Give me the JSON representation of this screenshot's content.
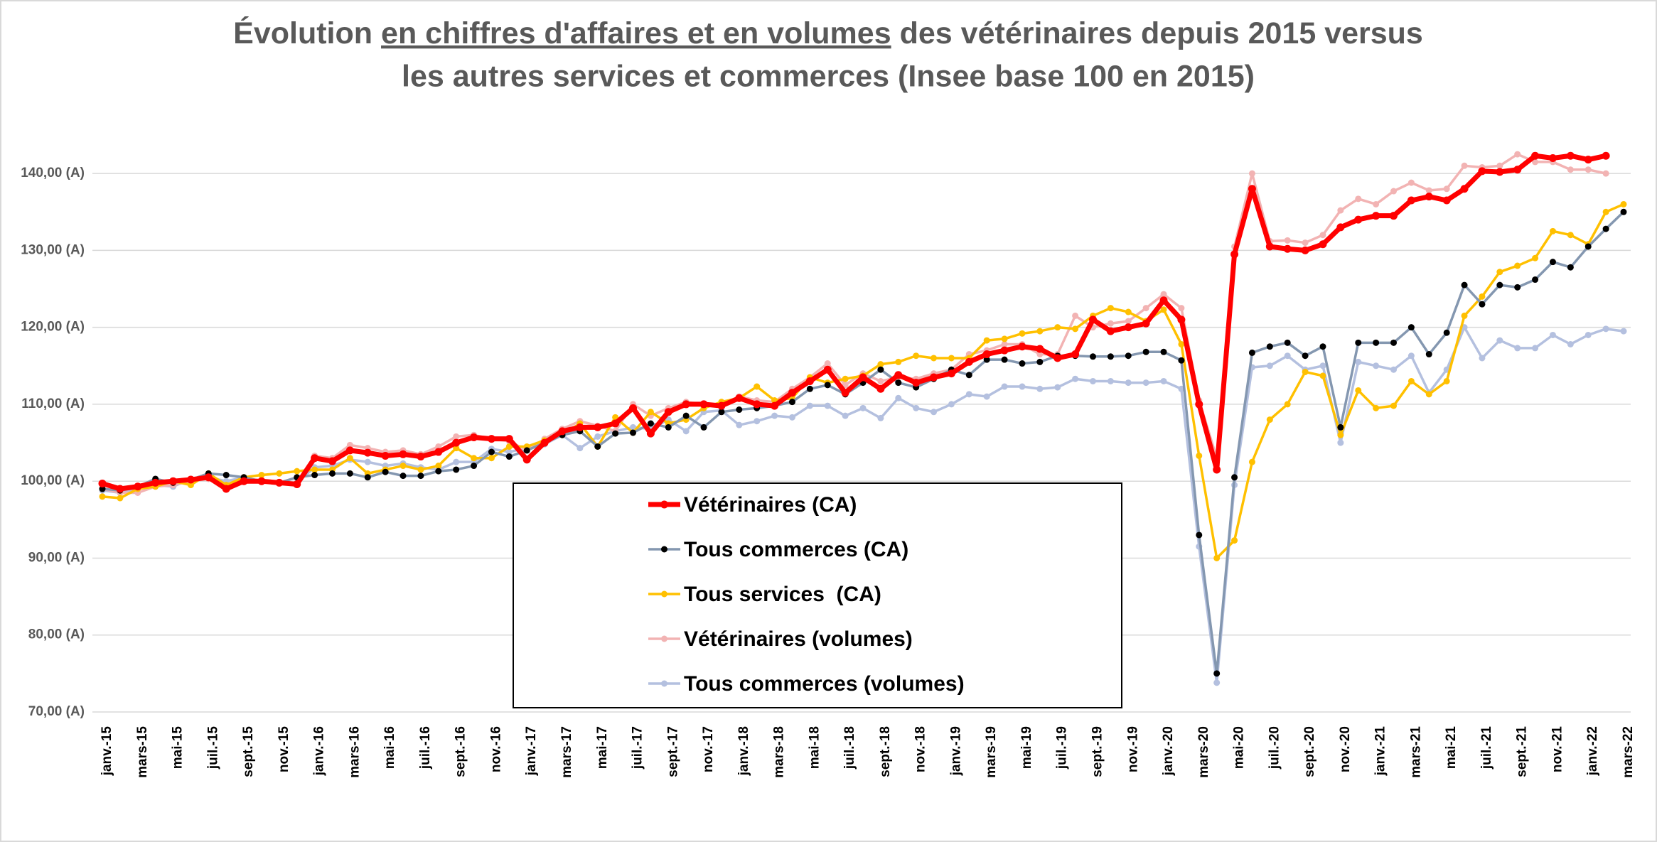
{
  "chart_data": {
    "type": "line",
    "title": [
      "Évolution",
      "en chiffres d'affaires et en volumes",
      "des vétérinaires depuis 2015 versus"
    ],
    "title_line2": "les autres services et commerces (Insee base 100 en 2015)",
    "categories": [
      "janv.-15",
      null,
      "mars-15",
      null,
      "mai-15",
      null,
      "juil.-15",
      null,
      "sept.-15",
      null,
      "nov.-15",
      null,
      "janv.-16",
      null,
      "mars-16",
      null,
      "mai-16",
      null,
      "juil.-16",
      null,
      "sept.-16",
      null,
      "nov.-16",
      null,
      "janv.-17",
      null,
      "mars-17",
      null,
      "mai-17",
      null,
      "juil.-17",
      null,
      "sept.-17",
      null,
      "nov.-17",
      null,
      "janv.-18",
      null,
      "mars-18",
      null,
      "mai-18",
      null,
      "juil.-18",
      null,
      "sept.-18",
      null,
      "nov.-18",
      null,
      "janv.-19",
      null,
      "mars-19",
      null,
      "mai-19",
      null,
      "juil.-19",
      null,
      "sept.-19",
      null,
      "nov.-19",
      null,
      "janv.-20",
      null,
      "mars-20",
      null,
      "mai-20",
      null,
      "juil.-20",
      null,
      "sept.-20",
      null,
      "nov.-20",
      null,
      "janv.-21",
      null,
      "mars-21",
      null,
      "mai-21",
      null,
      "juil.-21",
      null,
      "sept.-21",
      null,
      "nov.-21",
      null,
      "janv.-22",
      null,
      "mars-22"
    ],
    "series": [
      {
        "name": "Tous commerces (volumes)",
        "color": "#b4c0df",
        "marker_color": "#b4c0df",
        "values": [
          98.8,
          98.5,
          99.0,
          99.5,
          99.3,
          100.3,
          100.5,
          100.0,
          100.5,
          100.0,
          99.8,
          99.8,
          101.8,
          102.0,
          102.8,
          102.5,
          102.0,
          102.3,
          101.8,
          101.5,
          102.5,
          102.5,
          104.2,
          103.8,
          104.3,
          104.8,
          106.0,
          104.3,
          105.8,
          106.5,
          107.0,
          106.8,
          108.0,
          106.5,
          109.0,
          109.2,
          107.3,
          107.8,
          108.5,
          108.3,
          109.8,
          109.8,
          108.5,
          109.5,
          108.2,
          110.8,
          109.5,
          109.0,
          110.0,
          111.3,
          111.0,
          112.3,
          112.3,
          112.0,
          112.2,
          113.3,
          113.0,
          113.0,
          112.8,
          112.8,
          113.0,
          112.0,
          91.5,
          73.8,
          99.5,
          114.8,
          115.0,
          116.3,
          114.5,
          115.0,
          105.0,
          115.5,
          115.0,
          114.5,
          116.3,
          111.5,
          114.5,
          120.0,
          116.0,
          118.3,
          117.3,
          117.3,
          119.0,
          117.8,
          119.0,
          119.8,
          119.5
        ]
      },
      {
        "name": "Vétérinaires (volumes)",
        "color": "#f2b3b3",
        "marker_color": "#f2b3b3",
        "values": [
          99.0,
          98.5,
          98.5,
          99.3,
          99.5,
          100.0,
          100.3,
          99.5,
          100.5,
          100.0,
          99.8,
          99.5,
          103.3,
          103.0,
          104.7,
          104.3,
          103.8,
          104.0,
          103.5,
          104.5,
          105.8,
          106.0,
          105.5,
          105.2,
          104.0,
          105.5,
          106.8,
          107.8,
          107.2,
          106.5,
          110.0,
          108.5,
          109.5,
          110.3,
          110.0,
          110.0,
          111.0,
          110.5,
          110.3,
          112.0,
          113.5,
          115.3,
          112.5,
          114.0,
          113.0,
          113.5,
          113.3,
          114.0,
          114.5,
          116.5,
          117.0,
          117.8,
          117.8,
          116.5,
          116.5,
          121.5,
          120.0,
          120.5,
          120.8,
          122.5,
          124.3,
          122.5,
          110.5,
          103.0,
          130.5,
          140.0,
          131.2,
          131.3,
          131.0,
          132.0,
          135.2,
          136.7,
          136.0,
          137.7,
          138.8,
          137.8,
          138.0,
          141.0,
          140.8,
          141.0,
          142.5,
          141.5,
          141.5,
          140.5,
          140.5,
          140.0,
          null
        ]
      },
      {
        "name": "Tous services  (CA)",
        "color": "#ffc000",
        "marker_color": "#ffc000",
        "values": [
          98.0,
          97.8,
          99.0,
          99.3,
          100.0,
          99.5,
          101.0,
          99.5,
          100.5,
          100.8,
          101.0,
          101.3,
          101.5,
          101.5,
          103.0,
          101.0,
          101.5,
          102.0,
          101.5,
          102.0,
          104.3,
          103.0,
          103.0,
          104.5,
          104.5,
          105.3,
          106.0,
          107.5,
          104.5,
          108.3,
          106.3,
          109.0,
          107.5,
          108.0,
          109.5,
          110.3,
          110.8,
          112.3,
          110.5,
          110.8,
          113.5,
          112.8,
          113.3,
          113.7,
          115.2,
          115.5,
          116.3,
          116.0,
          116.0,
          116.0,
          118.3,
          118.5,
          119.2,
          119.5,
          120.0,
          119.8,
          121.5,
          122.5,
          122.0,
          120.8,
          122.3,
          117.8,
          103.3,
          90.0,
          92.3,
          102.5,
          108.0,
          110.0,
          114.2,
          113.7,
          106.0,
          111.8,
          109.5,
          109.8,
          113.0,
          111.3,
          113.0,
          121.5,
          124.0,
          127.2,
          128.0,
          129.0,
          132.5,
          132.0,
          130.8,
          135.0,
          136.0
        ]
      },
      {
        "name": "Tous commerces (CA)",
        "color": "#8497b0",
        "marker_color": "#000000",
        "values": [
          99.0,
          98.8,
          99.3,
          100.3,
          99.8,
          100.2,
          101.0,
          100.8,
          100.5,
          100.0,
          99.8,
          100.5,
          100.8,
          101.0,
          101.0,
          100.5,
          101.2,
          100.7,
          100.7,
          101.3,
          101.5,
          102.0,
          103.8,
          103.2,
          104.0,
          105.0,
          106.0,
          106.5,
          104.5,
          106.2,
          106.3,
          107.5,
          107.0,
          108.5,
          107.0,
          109.0,
          109.3,
          109.5,
          109.8,
          110.3,
          112.0,
          112.5,
          111.3,
          112.8,
          114.5,
          112.8,
          112.2,
          113.3,
          114.5,
          113.8,
          115.8,
          115.8,
          115.3,
          115.5,
          116.3,
          116.3,
          116.2,
          116.2,
          116.3,
          116.8,
          116.8,
          115.7,
          93.0,
          75.0,
          100.5,
          116.7,
          117.5,
          118.0,
          116.3,
          117.5,
          107.0,
          118.0,
          118.0,
          118.0,
          120.0,
          116.5,
          119.3,
          125.5,
          123.0,
          125.5,
          125.2,
          126.2,
          128.5,
          127.8,
          130.5,
          132.8,
          135.0
        ]
      },
      {
        "name": "Vétérinaires (CA)",
        "color": "#ff0000",
        "marker_color": "#ff0000",
        "values": [
          99.7,
          99.0,
          99.3,
          99.8,
          100.0,
          100.2,
          100.5,
          99.0,
          100.0,
          100.0,
          99.8,
          99.6,
          103.0,
          102.6,
          104.0,
          103.7,
          103.3,
          103.5,
          103.2,
          103.8,
          105.0,
          105.7,
          105.5,
          105.5,
          102.8,
          105.0,
          106.5,
          107.0,
          107.0,
          107.5,
          109.5,
          106.2,
          109.0,
          110.0,
          110.0,
          109.8,
          110.8,
          110.0,
          109.8,
          111.5,
          113.0,
          114.5,
          111.5,
          113.5,
          112.0,
          113.8,
          112.8,
          113.5,
          114.0,
          115.5,
          116.5,
          117.0,
          117.5,
          117.2,
          116.0,
          116.5,
          121.0,
          119.5,
          120.0,
          120.5,
          123.5,
          121.0,
          110.0,
          101.5,
          129.5,
          138.0,
          130.5,
          130.2,
          130.0,
          130.8,
          133.0,
          134.0,
          134.5,
          134.5,
          136.5,
          137.0,
          136.5,
          138.0,
          140.3,
          140.2,
          140.5,
          142.3,
          142.0,
          142.3,
          141.8,
          142.3,
          null
        ]
      }
    ],
    "legend_order": [
      4,
      3,
      2,
      1,
      0
    ],
    "legend": "lower center",
    "ylim": [
      70,
      145
    ],
    "yticks": [
      {
        "value": 70,
        "label": "70,00 (A)"
      },
      {
        "value": 80,
        "label": "80,00 (A)"
      },
      {
        "value": 90,
        "label": "90,00 (A)"
      },
      {
        "value": 100,
        "label": "100,00 (A)"
      },
      {
        "value": 110,
        "label": "110,00 (A)"
      },
      {
        "value": 120,
        "label": "120,00 (A)"
      },
      {
        "value": 130,
        "label": "130,00 (A)"
      },
      {
        "value": 140,
        "label": "140,00 (A)"
      }
    ],
    "grid": true
  }
}
